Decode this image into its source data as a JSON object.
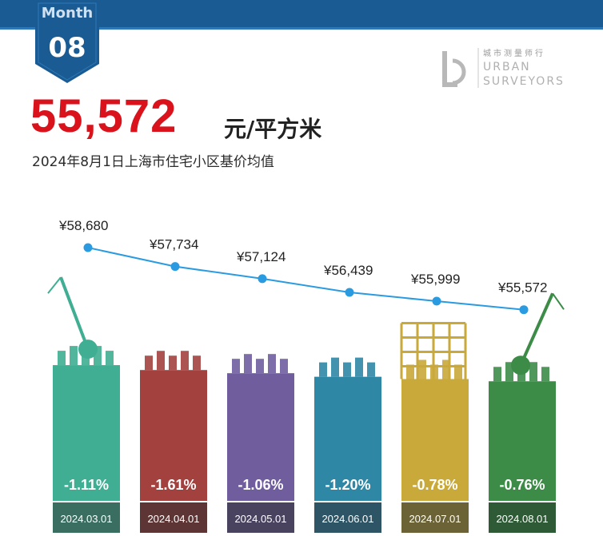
{
  "header": {
    "month_word": "Month",
    "month_number": "08",
    "price": "55,572",
    "unit": "元/平方米",
    "subtitle": "2024年8月1日上海市住宅小区基价均值"
  },
  "logo": {
    "cn": "城市测量师行",
    "en_line1": "URBAN",
    "en_line2": "SURVEYORS"
  },
  "colors": {
    "header_bar": "#1b5b93",
    "price": "#d9121b",
    "trend_line": "#2a9be0"
  },
  "chart_data": {
    "type": "bar",
    "categories": [
      "2024.03.01",
      "2024.04.01",
      "2024.05.01",
      "2024.06.01",
      "2024.07.01",
      "2024.08.01"
    ],
    "values": [
      58680,
      57734,
      57124,
      56439,
      55999,
      55572
    ],
    "value_labels": [
      "¥58,680",
      "¥57,734",
      "¥57,124",
      "¥56,439",
      "¥55,999",
      "¥55,572"
    ],
    "change_labels": [
      "-1.11%",
      "-1.61%",
      "-1.06%",
      "-1.20%",
      "-0.78%",
      "-0.76%"
    ],
    "bar_colors": [
      "#3fae92",
      "#a3413f",
      "#6f5d9e",
      "#2f87a6",
      "#c9a93a",
      "#3c8c48"
    ],
    "date_box_colors": [
      "#3a6e60",
      "#5e3535",
      "#4a4360",
      "#2e5566",
      "#6b6236",
      "#2f5a36"
    ],
    "line_values": [
      58680,
      57734,
      57124,
      56439,
      55999,
      55572
    ],
    "title": "",
    "xlabel": "",
    "ylabel": ""
  }
}
